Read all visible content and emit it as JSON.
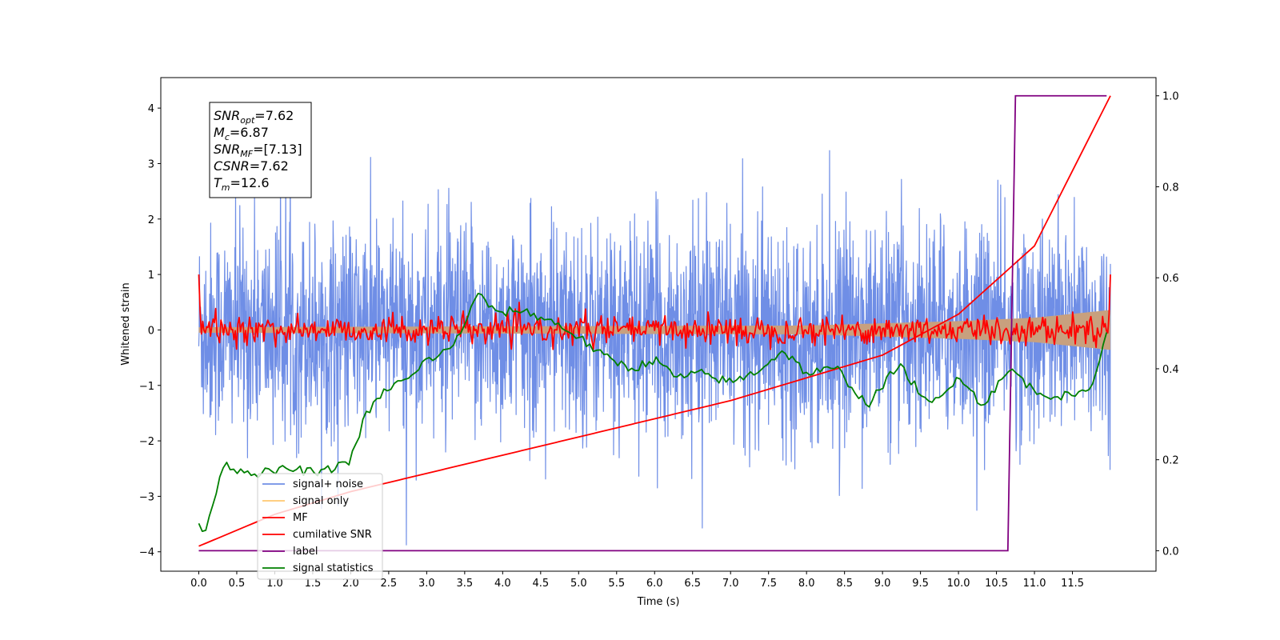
{
  "chart_data": {
    "type": "line",
    "xlabel": "Time (s)",
    "ylabel": "Whitened strain",
    "xlim": [
      -0.5,
      12.6
    ],
    "ylim": [
      -4.35,
      4.55
    ],
    "y2lim": [
      -0.045,
      1.04
    ],
    "x_ticks": [
      "0.0",
      "0.5",
      "1.0",
      "1.5",
      "2.0",
      "2.5",
      "3.0",
      "3.5",
      "4.0",
      "4.5",
      "5.0",
      "5.5",
      "6.0",
      "6.5",
      "7.0",
      "7.5",
      "8.0",
      "8.5",
      "9.0",
      "9.5",
      "10.0",
      "10.5",
      "11.0",
      "11.5"
    ],
    "y_ticks": [
      "4",
      "3",
      "2",
      "1",
      "0",
      "−1",
      "−2",
      "−3",
      "−4"
    ],
    "y2_ticks": [
      "1.0",
      "0.8",
      "0.6",
      "0.4",
      "0.2",
      "0.0"
    ],
    "info_box": {
      "snr_opt": {
        "base": "SNR",
        "sub": "opt",
        "value": "=7.62"
      },
      "mc": {
        "base": "M",
        "sub": "c",
        "value": "=6.87"
      },
      "snr_mf": {
        "base": "SNR",
        "sub": "MF",
        "value": "=[7.13]"
      },
      "csnr": {
        "base": "CSNR",
        "sub": "",
        "value": "=7.62"
      },
      "tm": {
        "base": "T",
        "sub": "m",
        "value": "=12.6"
      }
    },
    "legend": {
      "placement": "lower-left",
      "entries": [
        "signal+ noise",
        "signal only",
        "MF",
        "cumilative SNR",
        "label",
        "signal statistics"
      ]
    },
    "series": [
      {
        "name": "signal+ noise",
        "axis": "left",
        "color": "#6f8ee6",
        "x_range": [
          0,
          12.0
        ],
        "std": 0.95,
        "approx_range": [
          -3.95,
          4.17
        ]
      },
      {
        "name": "signal only",
        "axis": "left",
        "color": "#ffc870",
        "fill_color": "#c8a07e",
        "x_range": [
          0,
          12.0
        ],
        "envelope": [
          [
            0,
            0.05
          ],
          [
            8.0,
            0.08
          ],
          [
            10.0,
            0.16
          ],
          [
            11.0,
            0.22
          ],
          [
            12.0,
            0.36
          ]
        ]
      },
      {
        "name": "MF",
        "axis": "left",
        "color": "#ff0000",
        "x_range": [
          0,
          12.0
        ],
        "start_value": 1.0,
        "end_value": 1.0,
        "std": 0.13
      },
      {
        "name": "cumilative SNR",
        "axis": "right",
        "color": "#ff0000",
        "x": [
          0,
          1,
          2,
          3,
          4,
          5,
          6,
          7,
          8,
          9,
          10,
          11,
          12
        ],
        "values": [
          0.01,
          0.08,
          0.13,
          0.17,
          0.21,
          0.25,
          0.29,
          0.33,
          0.38,
          0.43,
          0.52,
          0.67,
          1.0
        ]
      },
      {
        "name": "label",
        "axis": "right",
        "color": "#800080",
        "x": [
          0,
          10.65,
          10.75,
          11.95
        ],
        "values": [
          0,
          0,
          1,
          1
        ]
      },
      {
        "name": "signal statistics",
        "axis": "right",
        "color": "#008000",
        "x": [
          0.0,
          0.06,
          0.15,
          0.3,
          0.5,
          0.8,
          1.2,
          1.6,
          2.0,
          2.2,
          2.5,
          2.8,
          3.0,
          3.3,
          3.5,
          3.7,
          3.9,
          4.2,
          4.4,
          4.7,
          5.0,
          5.3,
          5.7,
          6.0,
          6.3,
          6.6,
          7.0,
          7.3,
          7.7,
          8.0,
          8.4,
          8.8,
          9.0,
          9.2,
          9.4,
          9.6,
          9.8,
          10.0,
          10.3,
          10.5,
          10.7,
          11.0,
          11.3,
          11.6,
          11.8,
          11.95
        ],
        "values": [
          0.06,
          0.04,
          0.07,
          0.19,
          0.18,
          0.17,
          0.18,
          0.17,
          0.2,
          0.3,
          0.36,
          0.38,
          0.42,
          0.44,
          0.5,
          0.57,
          0.52,
          0.53,
          0.52,
          0.5,
          0.47,
          0.43,
          0.4,
          0.42,
          0.38,
          0.39,
          0.37,
          0.39,
          0.44,
          0.39,
          0.4,
          0.32,
          0.36,
          0.41,
          0.37,
          0.32,
          0.34,
          0.39,
          0.32,
          0.36,
          0.4,
          0.35,
          0.34,
          0.34,
          0.38,
          0.48
        ]
      }
    ]
  }
}
